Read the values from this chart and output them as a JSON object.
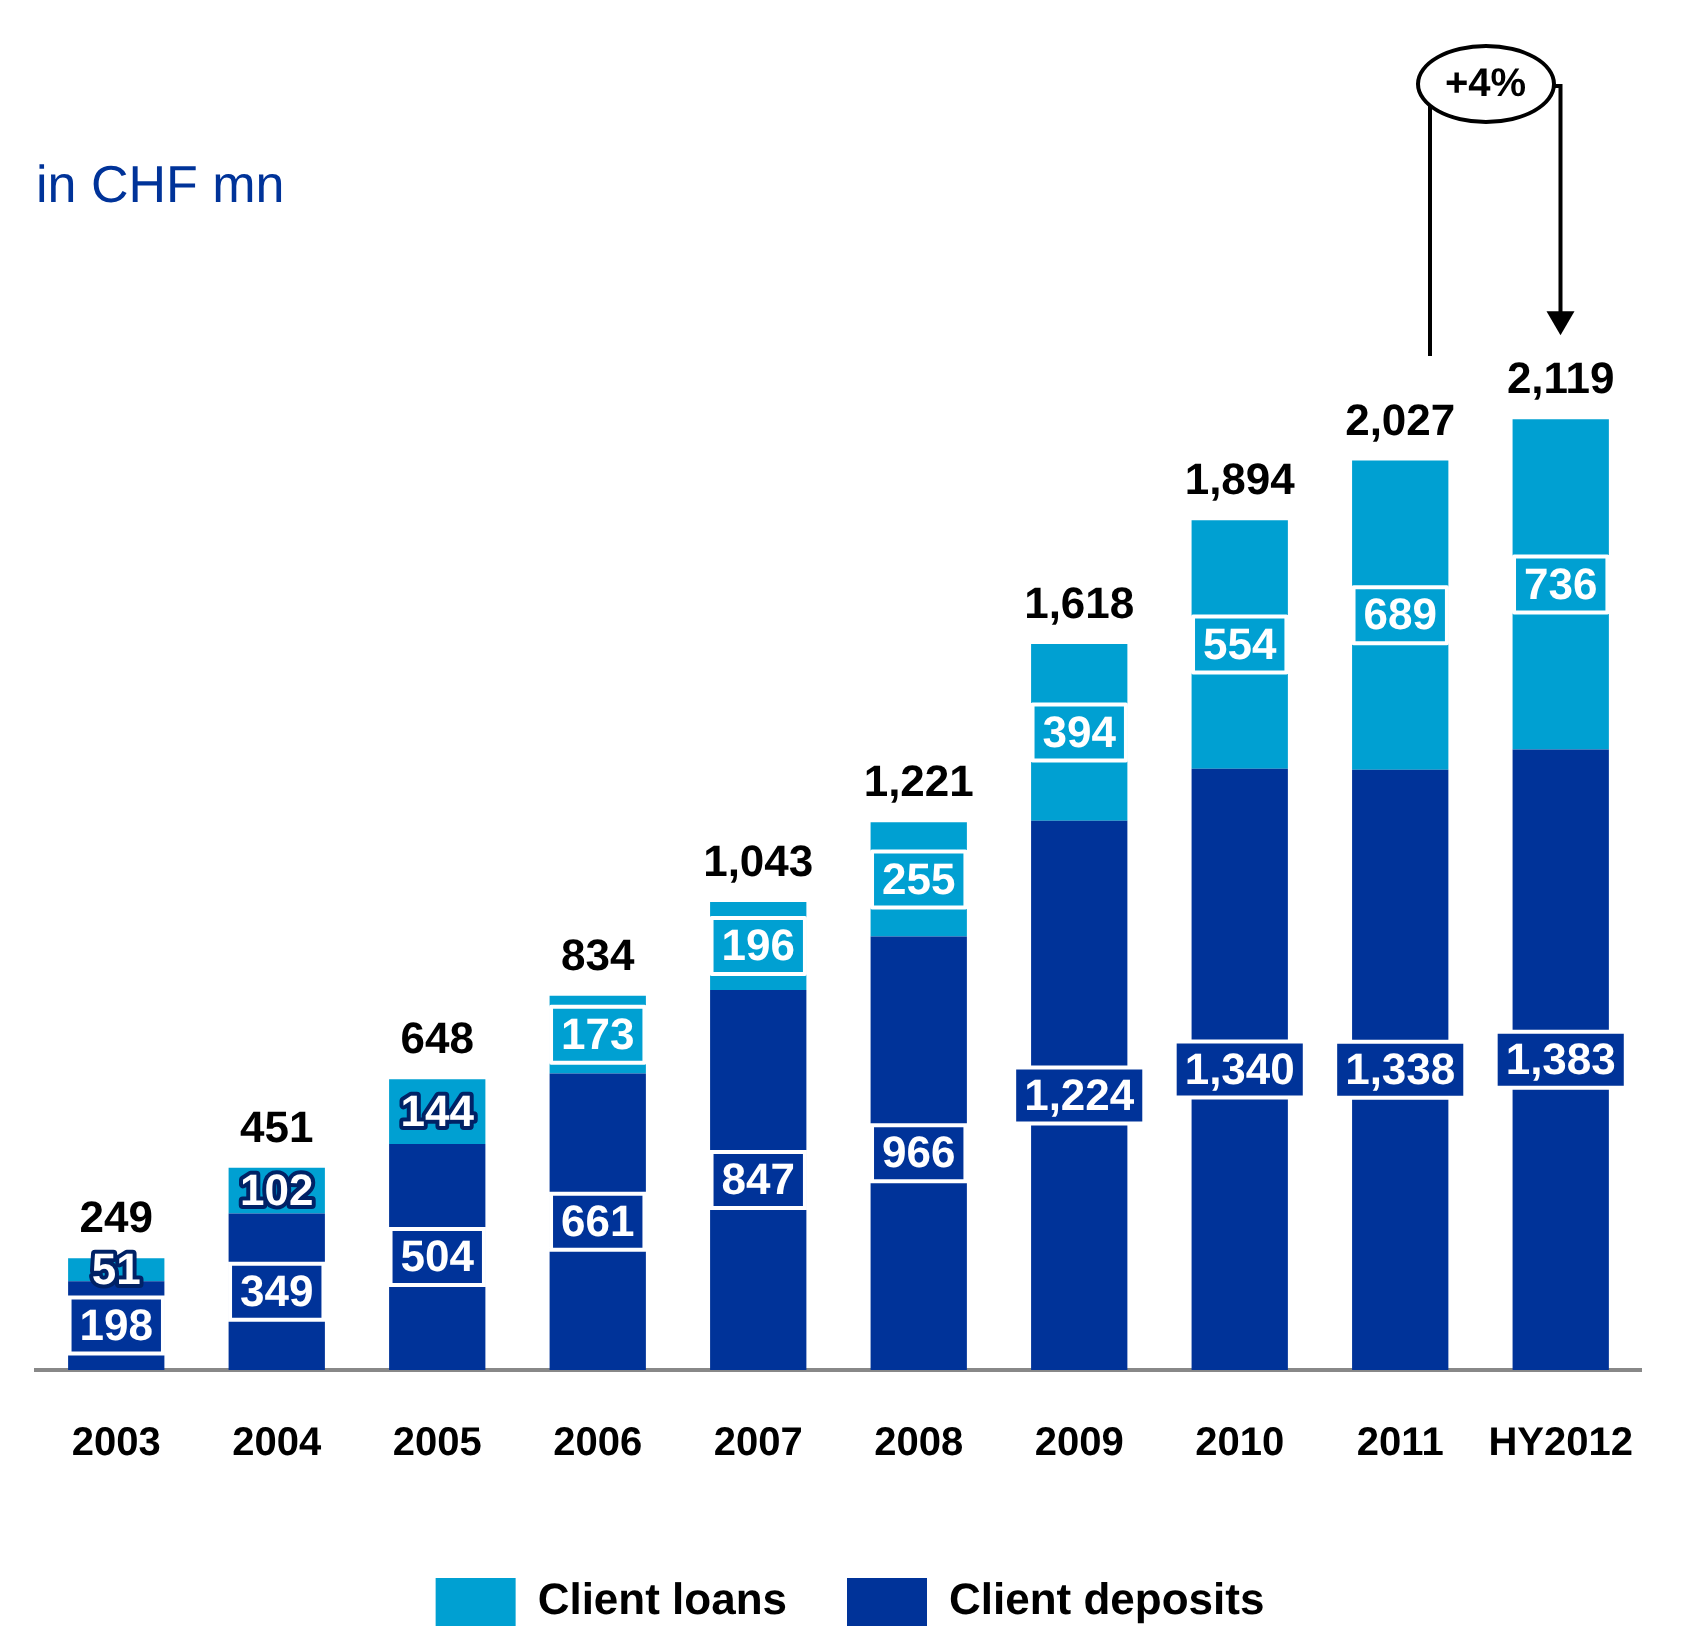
{
  "chart_data": {
    "type": "bar",
    "subtitle": "in CHF mn",
    "stacked": true,
    "categories": [
      "2003",
      "2004",
      "2005",
      "2006",
      "2007",
      "2008",
      "2009",
      "2010",
      "2011",
      "HY2012"
    ],
    "series": [
      {
        "name": "Client deposits",
        "color": "#003399",
        "values": [
          198,
          349,
          504,
          661,
          847,
          966,
          1224,
          1340,
          1338,
          1383
        ],
        "value_labels": [
          "198",
          "349",
          "504",
          "661",
          "847",
          "966",
          "1,224",
          "1,340",
          "1,338",
          "1,383"
        ]
      },
      {
        "name": "Client loans",
        "color": "#00a0d2",
        "values": [
          51,
          102,
          144,
          173,
          196,
          255,
          394,
          554,
          689,
          736
        ],
        "value_labels": [
          "51",
          "102",
          "144",
          "173",
          "196",
          "255",
          "394",
          "554",
          "689",
          "736"
        ]
      }
    ],
    "totals": [
      "249",
      "451",
      "648",
      "834",
      "1,043",
      "1,221",
      "1,618",
      "1,894",
      "2,027",
      "2,119"
    ],
    "annotations": [
      "+4%"
    ],
    "legend": "bottom",
    "grid": false
  }
}
